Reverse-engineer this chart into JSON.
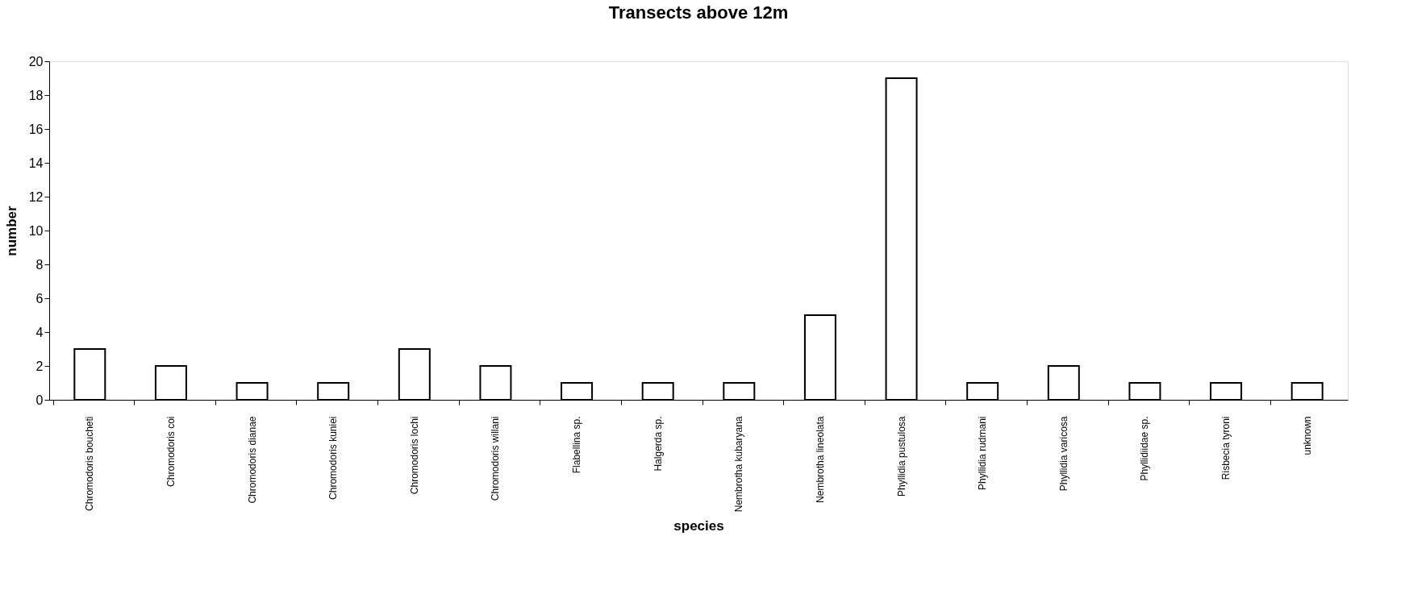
{
  "chart_data": {
    "type": "bar",
    "title": "Transects above 12m",
    "xlabel": "species",
    "ylabel": "number",
    "categories": [
      "Chromodoris boucheti",
      "Chromodoris coi",
      "Chromodoris dianae",
      "Chromodoris kuniei",
      "Chromodoris lochi",
      "Chromodoris willani",
      "Flabellina sp.",
      "Halgerda sp.",
      "Nembrotha kubaryana",
      "Nembrotha lineolata",
      "Phyllidia pustulosa",
      "Phyllidia rudmani",
      "Phyllidia varicosa",
      "Phyllidiidae sp.",
      "Risbecia tyroni",
      "unknown"
    ],
    "values": [
      3,
      2,
      1,
      1,
      3,
      2,
      1,
      1,
      1,
      5,
      19,
      1,
      2,
      1,
      1,
      1
    ],
    "color": "#ffffff",
    "ylim": [
      0,
      20
    ],
    "yticks": [
      0,
      2,
      4,
      6,
      8,
      10,
      12,
      14,
      16,
      18,
      20
    ],
    "grid": false
  }
}
